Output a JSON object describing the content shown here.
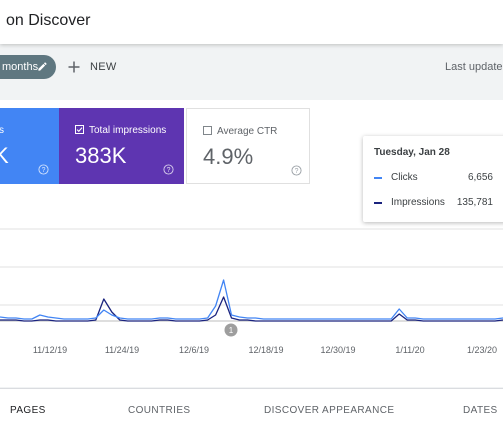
{
  "header": {
    "title": "on Discover"
  },
  "toolbar": {
    "date_filter": "months",
    "new_label": "NEW",
    "last_updated": "Last updated"
  },
  "cards": {
    "clicks": {
      "label": "ks",
      "value": "K"
    },
    "impressions": {
      "label": "Total impressions",
      "value": "383K",
      "checked": true
    },
    "ctr": {
      "label": "Average CTR",
      "value": "4.9%",
      "checked": false
    }
  },
  "tooltip": {
    "date": "Tuesday, Jan 28",
    "rows": [
      {
        "name": "Clicks",
        "value": "6,656",
        "color": "#4285f4"
      },
      {
        "name": "Impressions",
        "value": "135,781",
        "color": "#1a237e"
      }
    ]
  },
  "chart_data": {
    "type": "line",
    "x_ticks": [
      "11/12/19",
      "11/24/19",
      "12/6/19",
      "12/18/19",
      "12/30/19",
      "1/11/20",
      "1/23/20"
    ],
    "annotation": "1",
    "grid": true,
    "series": [
      {
        "color": "#4285f4",
        "values": [
          4,
          3,
          3,
          2,
          2,
          6,
          4,
          3,
          2,
          2,
          2,
          2,
          3,
          11,
          6,
          3,
          2,
          2,
          2,
          2,
          3,
          3,
          2,
          2,
          2,
          2,
          3,
          15,
          41,
          6,
          4,
          3,
          3,
          2,
          2,
          2,
          2,
          2,
          2,
          2,
          2,
          2,
          2,
          2,
          2,
          2,
          2,
          2,
          2,
          2,
          12,
          3,
          3,
          2,
          2,
          2,
          2,
          2,
          2,
          2,
          2,
          2,
          2,
          3
        ]
      },
      {
        "color": "#1a237e",
        "values": [
          1,
          1,
          1,
          0,
          0,
          1,
          1,
          0,
          0,
          0,
          0,
          0,
          1,
          22,
          9,
          1,
          0,
          0,
          0,
          0,
          1,
          1,
          0,
          0,
          0,
          0,
          1,
          6,
          24,
          3,
          1,
          1,
          0,
          0,
          0,
          0,
          0,
          0,
          0,
          0,
          0,
          0,
          0,
          0,
          0,
          0,
          0,
          0,
          0,
          0,
          7,
          1,
          1,
          0,
          0,
          0,
          0,
          0,
          0,
          0,
          0,
          0,
          0,
          1
        ]
      }
    ]
  },
  "tabs": [
    "PAGES",
    "COUNTRIES",
    "DISCOVER APPEARANCE",
    "DATES"
  ],
  "colors": {
    "clicks": "#4285f4",
    "impressions": "#5e35b1",
    "chip": "#5f7780"
  }
}
